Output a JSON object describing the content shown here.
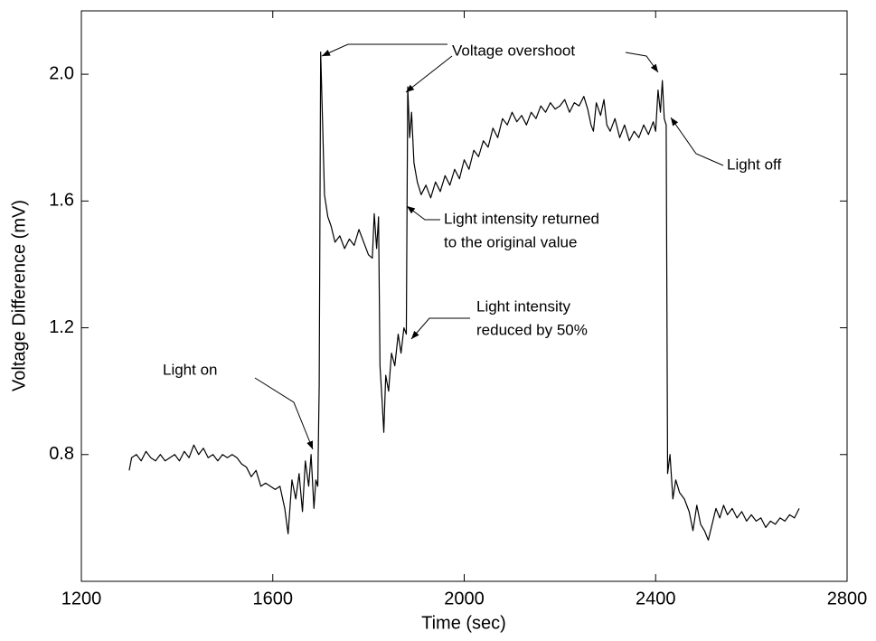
{
  "chart_data": {
    "type": "line",
    "xlabel": "Time (sec)",
    "ylabel": "Voltage Difference (mV)",
    "color": "#000000",
    "xlim": [
      1200,
      2800
    ],
    "xticks": [
      1200,
      1600,
      2000,
      2400,
      2800
    ],
    "ylim": [
      0.4,
      2.2
    ],
    "yticks": [
      0.8,
      1.2,
      1.6,
      {
        "value": 2,
        "label": "2.0"
      }
    ],
    "grid": false,
    "annotations": [
      {
        "lines": [
          "Voltage overshoot"
        ]
      },
      {
        "lines": [
          "Light on"
        ]
      },
      {
        "lines": [
          "Light off"
        ]
      },
      {
        "lines": [
          "Light intensity returned",
          "to the original value"
        ]
      },
      {
        "lines": [
          "Light intensity",
          "reduced by 50%"
        ]
      }
    ],
    "x": [
      1300,
      1305,
      1315,
      1325,
      1335,
      1345,
      1355,
      1365,
      1375,
      1385,
      1395,
      1405,
      1415,
      1425,
      1435,
      1445,
      1455,
      1465,
      1475,
      1485,
      1495,
      1505,
      1515,
      1525,
      1535,
      1545,
      1555,
      1565,
      1575,
      1585,
      1595,
      1605,
      1615,
      1625,
      1632,
      1640,
      1648,
      1655,
      1662,
      1668,
      1675,
      1680,
      1686,
      1690,
      1694,
      1697,
      1700,
      1704,
      1708,
      1715,
      1722,
      1730,
      1740,
      1750,
      1760,
      1770,
      1780,
      1790,
      1800,
      1808,
      1812,
      1817,
      1821,
      1824,
      1828,
      1832,
      1836,
      1842,
      1848,
      1855,
      1862,
      1868,
      1874,
      1879,
      1882,
      1886,
      1890,
      1895,
      1902,
      1910,
      1920,
      1930,
      1940,
      1950,
      1960,
      1970,
      1980,
      1990,
      2000,
      2010,
      2020,
      2030,
      2040,
      2050,
      2060,
      2070,
      2080,
      2090,
      2100,
      2110,
      2120,
      2130,
      2140,
      2150,
      2160,
      2170,
      2180,
      2190,
      2200,
      2210,
      2220,
      2230,
      2240,
      2250,
      2258,
      2265,
      2270,
      2276,
      2285,
      2292,
      2298,
      2305,
      2315,
      2325,
      2335,
      2345,
      2355,
      2365,
      2375,
      2385,
      2395,
      2400,
      2405,
      2410,
      2414,
      2418,
      2422,
      2425,
      2430,
      2436,
      2442,
      2450,
      2460,
      2470,
      2478,
      2486,
      2494,
      2502,
      2510,
      2518,
      2526,
      2534,
      2542,
      2550,
      2560,
      2570,
      2580,
      2590,
      2600,
      2610,
      2620,
      2630,
      2640,
      2650,
      2660,
      2670,
      2680,
      2690,
      2700
    ],
    "values": [
      0.75,
      0.79,
      0.8,
      0.78,
      0.81,
      0.79,
      0.78,
      0.8,
      0.78,
      0.79,
      0.8,
      0.78,
      0.81,
      0.79,
      0.83,
      0.8,
      0.82,
      0.79,
      0.8,
      0.78,
      0.8,
      0.79,
      0.8,
      0.79,
      0.77,
      0.76,
      0.73,
      0.75,
      0.7,
      0.71,
      0.7,
      0.69,
      0.7,
      0.63,
      0.55,
      0.72,
      0.66,
      0.74,
      0.62,
      0.78,
      0.7,
      0.8,
      0.63,
      0.72,
      0.7,
      1.02,
      2.07,
      1.85,
      1.62,
      1.55,
      1.52,
      1.47,
      1.49,
      1.45,
      1.48,
      1.46,
      1.51,
      1.47,
      1.43,
      1.42,
      1.56,
      1.45,
      1.55,
      1.08,
      0.98,
      0.87,
      1.05,
      1.0,
      1.12,
      1.08,
      1.18,
      1.12,
      1.2,
      1.18,
      1.96,
      1.8,
      1.88,
      1.72,
      1.66,
      1.62,
      1.65,
      1.61,
      1.66,
      1.63,
      1.68,
      1.65,
      1.7,
      1.67,
      1.73,
      1.7,
      1.76,
      1.74,
      1.79,
      1.77,
      1.83,
      1.8,
      1.86,
      1.84,
      1.88,
      1.85,
      1.87,
      1.84,
      1.88,
      1.86,
      1.9,
      1.88,
      1.91,
      1.89,
      1.9,
      1.92,
      1.88,
      1.91,
      1.9,
      1.93,
      1.89,
      1.84,
      1.82,
      1.91,
      1.87,
      1.92,
      1.84,
      1.82,
      1.86,
      1.8,
      1.84,
      1.79,
      1.82,
      1.8,
      1.84,
      1.81,
      1.85,
      1.82,
      1.95,
      1.88,
      1.98,
      1.86,
      1.84,
      0.74,
      0.8,
      0.66,
      0.72,
      0.68,
      0.66,
      0.62,
      0.56,
      0.64,
      0.58,
      0.56,
      0.53,
      0.58,
      0.63,
      0.6,
      0.64,
      0.61,
      0.63,
      0.6,
      0.62,
      0.59,
      0.61,
      0.59,
      0.6,
      0.57,
      0.59,
      0.58,
      0.6,
      0.59,
      0.61,
      0.6,
      0.63
    ]
  }
}
